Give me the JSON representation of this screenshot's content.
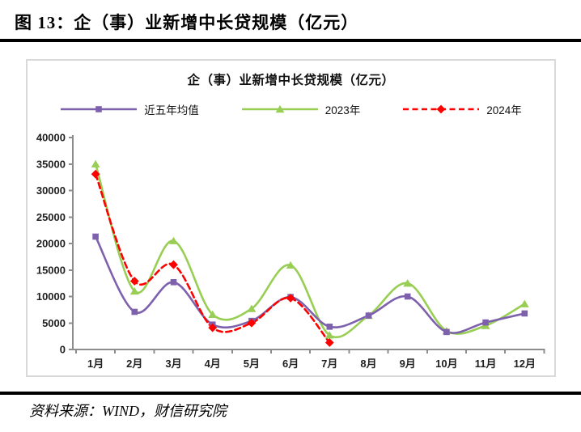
{
  "page": {
    "figure_label": "图 13：",
    "figure_title": "企（事）业新增中长贷规模（亿元）",
    "source_note": "资料来源：WIND，财信研究院"
  },
  "chart_data": {
    "type": "line",
    "title": "企（事）业新增中长贷规模（亿元）",
    "categories": [
      "1月",
      "2月",
      "3月",
      "4月",
      "5月",
      "6月",
      "7月",
      "8月",
      "9月",
      "10月",
      "11月",
      "12月"
    ],
    "series": [
      {
        "name": "近五年均值",
        "color": "#7e61ad",
        "marker": "square",
        "line_style": "solid",
        "values": [
          21300,
          7100,
          12700,
          4700,
          5400,
          9900,
          4300,
          6400,
          10000,
          3300,
          5100,
          6800
        ]
      },
      {
        "name": "2023年",
        "color": "#97ce53",
        "marker": "triangle",
        "line_style": "solid",
        "values": [
          35000,
          11000,
          20500,
          6600,
          7700,
          15900,
          2700,
          6400,
          12500,
          3500,
          4500,
          8600
        ]
      },
      {
        "name": "2024年",
        "color": "#ff0000",
        "marker": "diamond",
        "line_style": "dashed",
        "values": [
          33100,
          12900,
          16000,
          4100,
          5000,
          9700,
          1300,
          null,
          null,
          null,
          null,
          null
        ]
      }
    ],
    "ylim": [
      0,
      40000
    ],
    "ytick_step": 5000,
    "grid": false,
    "legend_position": "top",
    "axis_color": "#8c8c8c",
    "border_color": "#d9d9d9"
  }
}
